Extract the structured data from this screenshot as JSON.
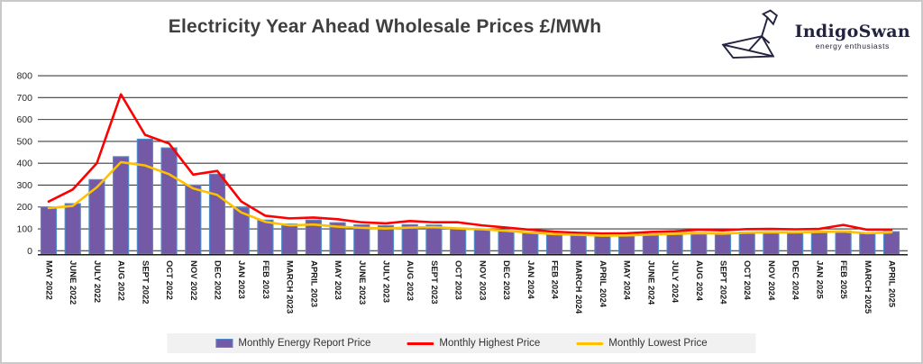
{
  "page": {
    "title": "Electricity Year Ahead Wholesale Prices £/MWh"
  },
  "logo": {
    "name": "IndigoSwan",
    "tagline": "energy enthusiasts",
    "color": "#23233f"
  },
  "legend": {
    "bar_label": "Monthly Energy Report Price",
    "high_label": "Monthly Highest Price",
    "low_label": "Monthly Lowest Price"
  },
  "colors": {
    "bar_fill": "#7359A6",
    "bar_border": "#4F8BC9",
    "high_line": "#FF0000",
    "low_line": "#FFC000",
    "gridline": "#3f3f3f",
    "axis_line": "#1a1a1a",
    "tick_text": "#262626",
    "title_text": "#3f3f3f",
    "legend_bg": "#f1f1f1"
  },
  "chart_data": {
    "type": "bar",
    "title": "Electricity Year Ahead Wholesale Prices £/MWh",
    "xlabel": "",
    "ylabel": "£/MWh",
    "ylim": [
      0,
      800
    ],
    "ytick_step": 100,
    "grid": true,
    "legend_position": "bottom",
    "categories": [
      "MAY 2022",
      "JUNE 2022",
      "JULY 2022",
      "AUG 2022",
      "SEPT 2022",
      "OCT 2022",
      "NOV 2022",
      "DEC 2022",
      "JAN 2023",
      "FEB 2023",
      "MARCH 2023",
      "APRIL 2023",
      "MAY 2023",
      "JUNE 2023",
      "JULY 2023",
      "AUG 2023",
      "SEPT 2023",
      "OCT 2023",
      "NOV 2023",
      "DEC 2023",
      "JAN 2024",
      "FEB 2024",
      "MARCH 2024",
      "APRIL 2024",
      "MAY 2024",
      "JUNE 2024",
      "JULY 2024",
      "AUG 2024",
      "SEPT 2024",
      "OCT 2024",
      "NOV 2024",
      "DEC 2024",
      "JAN 2025",
      "FEB 2025",
      "MARCH 2025",
      "APRIL 2025"
    ],
    "series": [
      {
        "name": "Monthly Energy Report Price",
        "type": "bar",
        "color": "#7359A6",
        "values": [
          200,
          215,
          325,
          430,
          510,
          470,
          300,
          350,
          198,
          140,
          122,
          140,
          128,
          118,
          114,
          119,
          117,
          104,
          99,
          91,
          84,
          77,
          74,
          70,
          72,
          77,
          79,
          83,
          80,
          85,
          86,
          86,
          88,
          90,
          82,
          87
        ]
      },
      {
        "name": "Monthly Highest Price",
        "type": "line",
        "color": "#FF0000",
        "values": [
          225,
          280,
          400,
          715,
          530,
          490,
          348,
          365,
          225,
          160,
          148,
          152,
          144,
          130,
          125,
          136,
          130,
          130,
          116,
          106,
          96,
          87,
          82,
          79,
          80,
          86,
          89,
          96,
          93,
          99,
          100,
          98,
          100,
          118,
          96,
          96
        ]
      },
      {
        "name": "Monthly Lowest Price",
        "type": "line",
        "color": "#FFC000",
        "values": [
          195,
          205,
          290,
          405,
          390,
          350,
          285,
          255,
          175,
          132,
          116,
          120,
          110,
          105,
          102,
          106,
          108,
          102,
          98,
          91,
          83,
          76,
          73,
          69,
          70,
          74,
          77,
          80,
          78,
          83,
          84,
          84,
          86,
          88,
          80,
          84
        ]
      }
    ]
  }
}
